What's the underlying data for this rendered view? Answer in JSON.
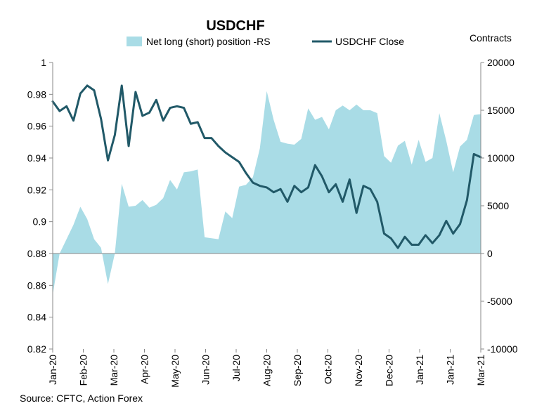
{
  "chart_data": {
    "type": "area",
    "title": "USDCHF",
    "source": "Source: CFTC, Action Forex",
    "right_axis_label": "Contracts",
    "legend": {
      "placement": "top-center"
    },
    "grid": false,
    "left_axis": {
      "min": 0.82,
      "max": 1.0,
      "ticks": [
        "0.82",
        "0.84",
        "0.86",
        "0.88",
        "0.9",
        "0.92",
        "0.94",
        "0.96",
        "0.98",
        "1"
      ]
    },
    "right_axis": {
      "min": -10000,
      "max": 20000,
      "ticks": [
        "-10000",
        "-5000",
        "0",
        "5000",
        "10000",
        "15000",
        "20000"
      ]
    },
    "x_labels": [
      "Jan-20",
      "Feb-20",
      "Mar-20",
      "Apr-20",
      "May-20",
      "Jun-20",
      "Jul-20",
      "Aug-20",
      "Sep-20",
      "Oct-20",
      "Nov-20",
      "Dec-20",
      "Jan-21",
      "Jan-21",
      "Mar-21"
    ],
    "weeks": 63,
    "series": [
      {
        "name": "Net long (short) position -RS",
        "kind": "area",
        "axis": "right",
        "color": "#a9dce6",
        "values": [
          -4300,
          0,
          1500,
          3000,
          4900,
          3600,
          1500,
          600,
          -3200,
          0,
          7300,
          4900,
          5000,
          5600,
          4800,
          5100,
          5800,
          7700,
          6700,
          8500,
          8600,
          8800,
          1700,
          1600,
          1500,
          4400,
          3700,
          7000,
          7200,
          8000,
          11000,
          17000,
          14000,
          11700,
          11500,
          11400,
          12000,
          15200,
          14000,
          14300,
          13000,
          15000,
          15500,
          15000,
          15600,
          15000,
          15000,
          14700,
          10200,
          9500,
          11300,
          11800,
          9300,
          11900,
          9600,
          10000,
          14700,
          11800,
          8500,
          11200,
          11900,
          14500,
          14600
        ]
      },
      {
        "name": "USDCHF Close",
        "kind": "line",
        "axis": "left",
        "color": "#215968",
        "values": [
          0.9755,
          0.9695,
          0.9725,
          0.9635,
          0.9805,
          0.9855,
          0.9825,
          0.9645,
          0.9385,
          0.9545,
          0.9855,
          0.9475,
          0.9815,
          0.9665,
          0.9685,
          0.9765,
          0.9635,
          0.9715,
          0.9725,
          0.9715,
          0.9615,
          0.9625,
          0.9525,
          0.9525,
          0.9475,
          0.9435,
          0.9405,
          0.9375,
          0.9305,
          0.9245,
          0.9225,
          0.9215,
          0.9185,
          0.9205,
          0.9125,
          0.9225,
          0.9185,
          0.9215,
          0.9355,
          0.9285,
          0.9185,
          0.9235,
          0.9125,
          0.9265,
          0.9055,
          0.9225,
          0.9205,
          0.9125,
          0.8925,
          0.8895,
          0.8835,
          0.8905,
          0.8855,
          0.8855,
          0.8915,
          0.8865,
          0.8915,
          0.9005,
          0.8925,
          0.8985,
          0.9135,
          0.9425,
          0.9405
        ]
      }
    ]
  }
}
